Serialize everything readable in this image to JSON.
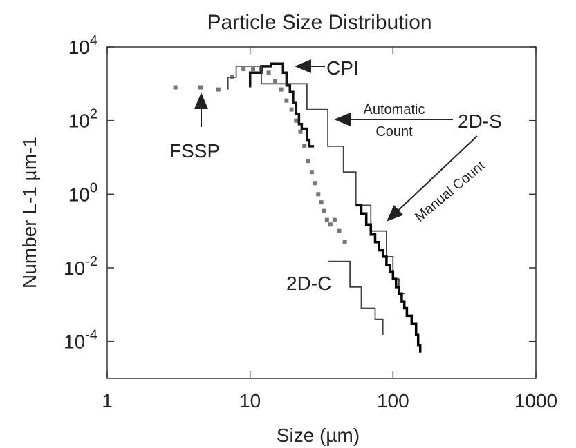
{
  "chart_data": {
    "type": "line",
    "title": "Particle Size Distribution",
    "xlabel": "Size (µm)",
    "ylabel": "Number L-1 µm-1",
    "x_scale": "log",
    "y_scale": "log",
    "xlim": [
      1,
      1000
    ],
    "ylim": [
      1e-05,
      10000
    ],
    "x_ticks": [
      {
        "value": 1,
        "label": "1"
      },
      {
        "value": 10,
        "label": "10"
      },
      {
        "value": 100,
        "label": "100"
      },
      {
        "value": 1000,
        "label": "1000"
      }
    ],
    "y_ticks": [
      {
        "value": 10000,
        "base": "10",
        "exp": "4"
      },
      {
        "value": 100,
        "base": "10",
        "exp": "2"
      },
      {
        "value": 1,
        "base": "10",
        "exp": "0"
      },
      {
        "value": 0.01,
        "base": "10",
        "exp": "-2"
      },
      {
        "value": 0.0001,
        "base": "10",
        "exp": "-4"
      }
    ],
    "grid": false,
    "series": [
      {
        "name": "FSSP",
        "style": "dots",
        "color": "#777777",
        "points": [
          [
            3.0,
            800
          ],
          [
            4.5,
            800
          ],
          [
            6.0,
            700
          ],
          [
            7.5,
            1500
          ],
          [
            9.0,
            2500
          ],
          [
            10.5,
            2500
          ],
          [
            12.0,
            2500
          ],
          [
            13.5,
            2000
          ],
          [
            15.0,
            1200
          ],
          [
            16.5,
            700
          ],
          [
            18.0,
            350
          ],
          [
            19.5,
            200
          ],
          [
            21.0,
            100
          ],
          [
            22.5,
            50
          ],
          [
            24.0,
            20
          ],
          [
            25.5,
            8
          ],
          [
            27.0,
            4
          ],
          [
            28.5,
            2
          ],
          [
            30.0,
            1
          ],
          [
            31.5,
            0.6
          ],
          [
            33.0,
            0.35
          ],
          [
            34.5,
            0.2
          ],
          [
            36.5,
            0.15
          ],
          [
            39.0,
            0.2
          ],
          [
            42.0,
            0.1
          ],
          [
            46.0,
            0.05
          ]
        ]
      },
      {
        "name": "CPI",
        "style": "step-bold",
        "color": "#111111",
        "points": [
          [
            10,
            800
          ],
          [
            10,
            2000
          ],
          [
            12,
            2000
          ],
          [
            12,
            3000
          ],
          [
            14,
            3000
          ],
          [
            14,
            3500
          ],
          [
            17,
            3500
          ],
          [
            17,
            2000
          ],
          [
            18,
            2000
          ],
          [
            18,
            900
          ],
          [
            19,
            900
          ],
          [
            19,
            600
          ],
          [
            20,
            600
          ],
          [
            20,
            300
          ],
          [
            21,
            300
          ],
          [
            21,
            150
          ],
          [
            22,
            150
          ],
          [
            22,
            80
          ],
          [
            23,
            80
          ],
          [
            23,
            60
          ],
          [
            25,
            60
          ],
          [
            25,
            30
          ],
          [
            26,
            30
          ],
          [
            26,
            20
          ],
          [
            28,
            20
          ]
        ]
      },
      {
        "name": "2D-S Automatic Count",
        "style": "step-thin",
        "color": "#444444",
        "points": [
          [
            7,
            700
          ],
          [
            7,
            1500
          ],
          [
            8,
            1500
          ],
          [
            8,
            3000
          ],
          [
            12,
            3000
          ],
          [
            12,
            1000
          ],
          [
            25,
            1000
          ],
          [
            25,
            200
          ],
          [
            35,
            200
          ],
          [
            35,
            20
          ],
          [
            45,
            20
          ],
          [
            45,
            4
          ],
          [
            55,
            4
          ],
          [
            55,
            0.5
          ],
          [
            70,
            0.5
          ],
          [
            70,
            0.1
          ],
          [
            90,
            0.1
          ],
          [
            90,
            0.02
          ],
          [
            100,
            0.02
          ],
          [
            100,
            0.005
          ],
          [
            110,
            0.005
          ],
          [
            110,
            0.002
          ],
          [
            120,
            0.002
          ]
        ]
      },
      {
        "name": "2D-S Manual Count",
        "style": "step-bold",
        "color": "#000000",
        "points": [
          [
            55,
            0.5
          ],
          [
            60,
            0.5
          ],
          [
            60,
            0.3
          ],
          [
            65,
            0.3
          ],
          [
            65,
            0.15
          ],
          [
            70,
            0.15
          ],
          [
            70,
            0.08
          ],
          [
            75,
            0.08
          ],
          [
            75,
            0.05
          ],
          [
            80,
            0.05
          ],
          [
            80,
            0.03
          ],
          [
            85,
            0.03
          ],
          [
            85,
            0.02
          ],
          [
            90,
            0.02
          ],
          [
            90,
            0.012
          ],
          [
            95,
            0.012
          ],
          [
            95,
            0.008
          ],
          [
            100,
            0.008
          ],
          [
            100,
            0.005
          ],
          [
            105,
            0.005
          ],
          [
            105,
            0.003
          ],
          [
            110,
            0.003
          ],
          [
            110,
            0.002
          ],
          [
            115,
            0.002
          ],
          [
            115,
            0.0012
          ],
          [
            120,
            0.0012
          ],
          [
            120,
            0.0008
          ],
          [
            125,
            0.0008
          ],
          [
            125,
            0.0005
          ],
          [
            135,
            0.0005
          ],
          [
            135,
            0.0003
          ],
          [
            145,
            0.0003
          ],
          [
            145,
            0.00015
          ],
          [
            150,
            0.00015
          ],
          [
            150,
            8e-05
          ],
          [
            155,
            8e-05
          ],
          [
            155,
            5e-05
          ]
        ]
      },
      {
        "name": "2D-C",
        "style": "step-thin",
        "color": "#444444",
        "points": [
          [
            35,
            0.015
          ],
          [
            50,
            0.015
          ],
          [
            50,
            0.003
          ],
          [
            60,
            0.003
          ],
          [
            60,
            0.0008
          ],
          [
            75,
            0.0008
          ],
          [
            75,
            0.0004
          ],
          [
            85,
            0.0004
          ],
          [
            85,
            0.00015
          ]
        ]
      }
    ],
    "annotations": [
      {
        "id": "cpi",
        "text": "CPI"
      },
      {
        "id": "fssp",
        "text": "FSSP"
      },
      {
        "id": "auto1",
        "text": "Automatic"
      },
      {
        "id": "auto2",
        "text": "Count"
      },
      {
        "id": "twods",
        "text": "2D-S"
      },
      {
        "id": "manual",
        "text": "Manual Count"
      },
      {
        "id": "twodc",
        "text": "2D-C"
      }
    ]
  }
}
